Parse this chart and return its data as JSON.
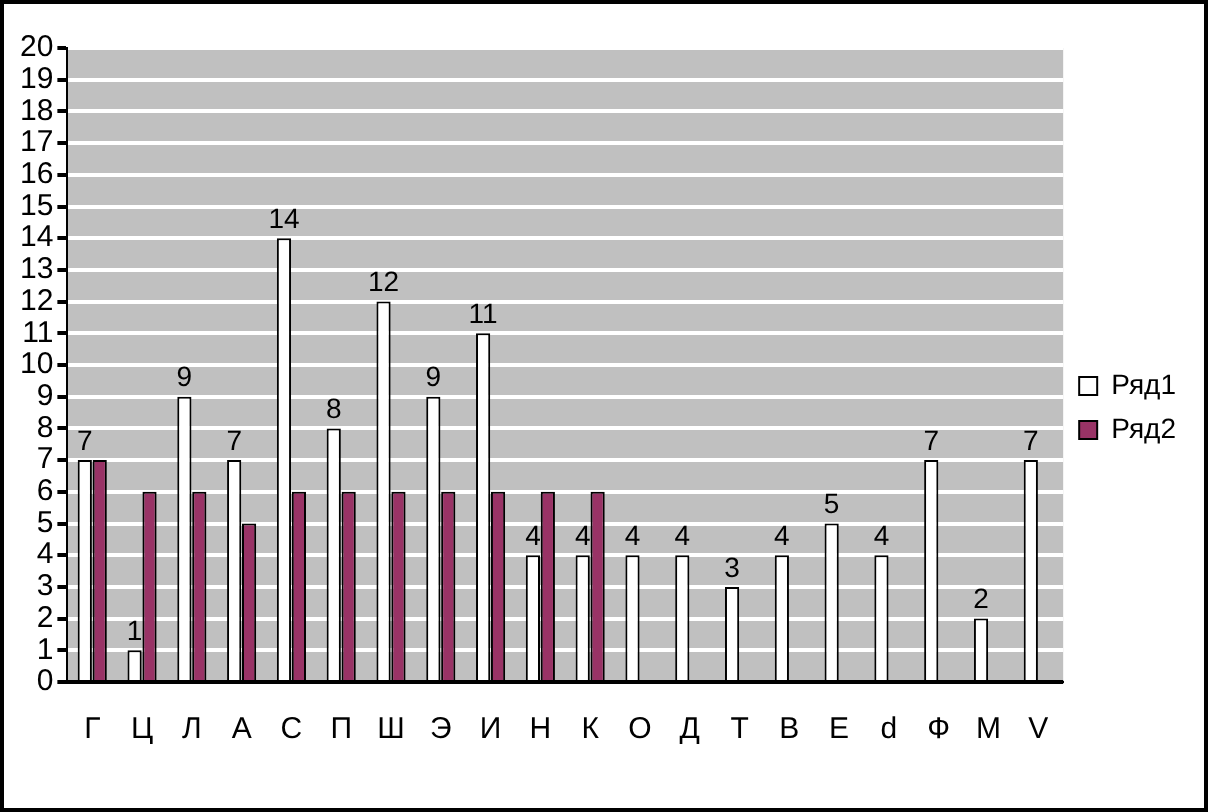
{
  "chart_data": {
    "type": "bar",
    "categories": [
      "Г",
      "Ц",
      "Л",
      "А",
      "С",
      "П",
      "Ш",
      "Э",
      "И",
      "Н",
      "К",
      "О",
      "Д",
      "Т",
      "В",
      "Е",
      "d",
      "Ф",
      "М",
      "V"
    ],
    "series": [
      {
        "name": "Ряд1",
        "color": "#ffffff",
        "values": [
          7,
          1,
          9,
          7,
          14,
          8,
          12,
          9,
          11,
          4,
          4,
          4,
          4,
          3,
          4,
          5,
          4,
          7,
          2,
          7
        ],
        "value_labels": [
          "7",
          "1",
          "9",
          "7",
          "14",
          "8",
          "12",
          "9",
          "11",
          "4",
          "4",
          "4",
          "4",
          "3",
          "4",
          "5",
          "4",
          "7",
          "2",
          "7"
        ]
      },
      {
        "name": "Ряд2",
        "color": "#993366",
        "values": [
          7,
          6,
          6,
          5,
          6,
          6,
          6,
          6,
          6,
          6,
          6,
          null,
          null,
          null,
          null,
          null,
          null,
          null,
          null,
          null
        ]
      }
    ],
    "ylim": [
      0,
      20
    ],
    "yticks": [
      0,
      1,
      2,
      3,
      4,
      5,
      6,
      7,
      8,
      9,
      10,
      11,
      12,
      13,
      14,
      15,
      16,
      17,
      18,
      19,
      20
    ],
    "grid": "y",
    "legend": "right"
  }
}
